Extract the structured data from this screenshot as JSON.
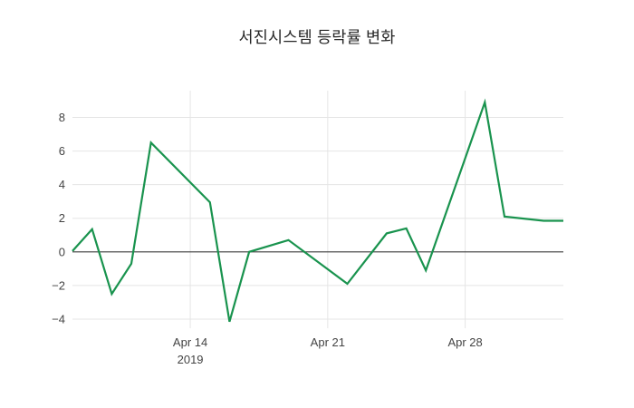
{
  "chart_data": {
    "type": "line",
    "title": "서진시스템 등락률 변화",
    "xlabel": "",
    "ylabel": "",
    "legend": "none",
    "grid": true,
    "zeroline": true,
    "x_dates": [
      "2019-04-08",
      "2019-04-09",
      "2019-04-10",
      "2019-04-11",
      "2019-04-12",
      "2019-04-15",
      "2019-04-16",
      "2019-04-17",
      "2019-04-18",
      "2019-04-19",
      "2019-04-22",
      "2019-04-23",
      "2019-04-24",
      "2019-04-25",
      "2019-04-26",
      "2019-04-29",
      "2019-04-30",
      "2019-05-02",
      "2019-05-03"
    ],
    "x_day_offsets": [
      0,
      1,
      2,
      3,
      4,
      7,
      8,
      9,
      10,
      11,
      14,
      15,
      16,
      17,
      18,
      21,
      22,
      24,
      25
    ],
    "series": [
      {
        "name": "등락률",
        "values": [
          0.05,
          1.35,
          -2.5,
          -0.7,
          6.5,
          2.95,
          -4.15,
          0.0,
          0.35,
          0.7,
          -1.9,
          -0.4,
          1.1,
          1.4,
          -1.1,
          8.9,
          2.1,
          1.85,
          1.85
        ]
      }
    ],
    "x_ticks": [
      {
        "day_offset": 6,
        "label": "Apr 14",
        "sublabel": "2019"
      },
      {
        "day_offset": 13,
        "label": "Apr 21",
        "sublabel": ""
      },
      {
        "day_offset": 20,
        "label": "Apr 28",
        "sublabel": ""
      }
    ],
    "y_ticks": [
      {
        "value": 8,
        "label": "8"
      },
      {
        "value": 6,
        "label": "6"
      },
      {
        "value": 4,
        "label": "4"
      },
      {
        "value": 2,
        "label": "2"
      },
      {
        "value": 0,
        "label": "0"
      },
      {
        "value": -2,
        "label": "−2"
      },
      {
        "value": -4,
        "label": "−4"
      }
    ],
    "xlim_days": [
      0,
      25
    ],
    "ylim": [
      -4.54,
      9.59
    ],
    "colors": {
      "line": "#19934e",
      "grid": "#e5e5e5",
      "zeroline": "#3d3d3d",
      "tick_label": "#444444",
      "title": "#262626",
      "background": "#ffffff"
    }
  }
}
